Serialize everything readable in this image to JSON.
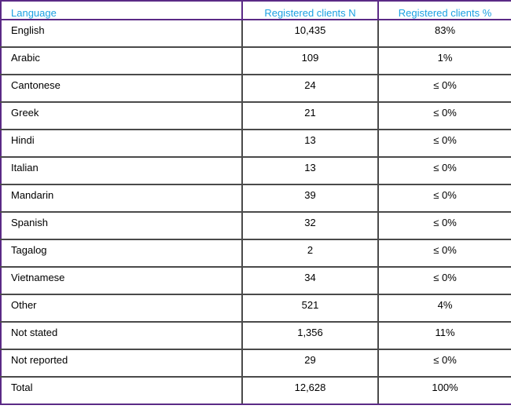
{
  "table": {
    "headers": [
      "Language",
      "Registered clients N",
      "Registered clients %"
    ],
    "rows": [
      [
        "English",
        "10,435",
        "83%"
      ],
      [
        "Arabic",
        "109",
        "1%"
      ],
      [
        "Cantonese",
        "24",
        "≤ 0%"
      ],
      [
        "Greek",
        "21",
        "≤ 0%"
      ],
      [
        "Hindi",
        "13",
        "≤ 0%"
      ],
      [
        "Italian",
        "13",
        "≤ 0%"
      ],
      [
        "Mandarin",
        "39",
        "≤ 0%"
      ],
      [
        "Spanish",
        "32",
        "≤ 0%"
      ],
      [
        "Tagalog",
        "2",
        "≤ 0%"
      ],
      [
        "Vietnamese",
        "34",
        "≤ 0%"
      ],
      [
        "Other",
        "521",
        "4%"
      ],
      [
        "Not stated",
        "1,356",
        "11%"
      ],
      [
        "Not reported",
        "29",
        "≤ 0%"
      ],
      [
        "Total",
        "12,628",
        "100%"
      ]
    ]
  },
  "colors": {
    "header_text": "#1ba1e2",
    "outer_border": "#5b2a86",
    "grid": "#4a4a4a"
  }
}
